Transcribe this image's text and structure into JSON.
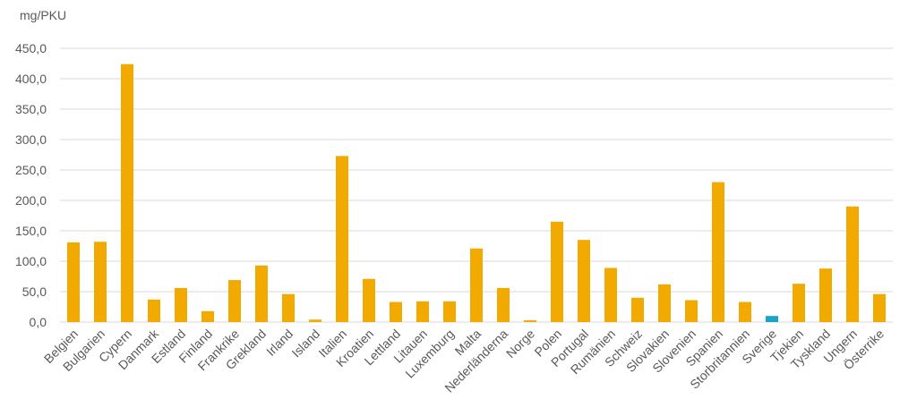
{
  "chart_data": {
    "type": "bar",
    "ylabel": "mg/PKU",
    "ylim": [
      0,
      450
    ],
    "ytick_step": 50,
    "ytick_labels": [
      "0,0",
      "50,0",
      "100,0",
      "150,0",
      "200,0",
      "250,0",
      "300,0",
      "350,0",
      "400,0",
      "450,0"
    ],
    "grid": true,
    "categories": [
      "Belgien",
      "Bulgarien",
      "Cypern",
      "Danmark",
      "Estland",
      "Finland",
      "Frankrike",
      "Grekland",
      "Irland",
      "Island",
      "Italien",
      "Kroatien",
      "Lettland",
      "Litauen",
      "Luxemburg",
      "Malta",
      "Nederländerna",
      "Norge",
      "Polen",
      "Portugal",
      "Rumänien",
      "Schweiz",
      "Slovakien",
      "Slovenien",
      "Spanien",
      "Storbritannien",
      "Sverige",
      "Tjekien",
      "Tyskland",
      "Ungern",
      "Österrike"
    ],
    "values": [
      131,
      132,
      424,
      37,
      56,
      18,
      69,
      93,
      46,
      4,
      273,
      71,
      33,
      34,
      34,
      121,
      56,
      3,
      165,
      135,
      89,
      40,
      62,
      36,
      230,
      33,
      10,
      63,
      88,
      190,
      46
    ],
    "colors": {
      "default": "#F2A900",
      "highlight": "#1AA3C8",
      "grid": "#D9D9D9"
    },
    "highlight_category": "Sverige"
  }
}
